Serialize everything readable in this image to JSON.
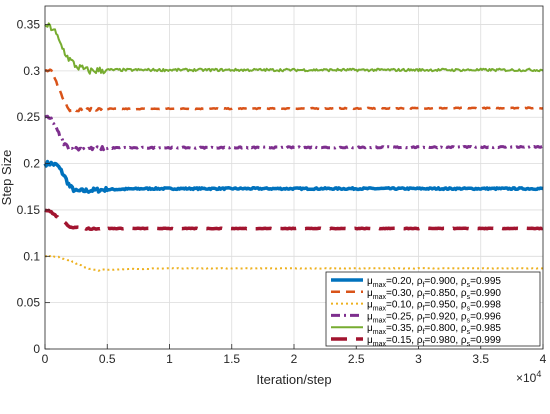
{
  "chart_data": {
    "type": "line",
    "xlabel": "Iteration/step",
    "ylabel": "Step Size",
    "x_multiplier_label": "×10",
    "x_multiplier_exp": "4",
    "xlim": [
      0,
      40000
    ],
    "ylim": [
      0,
      0.37
    ],
    "xticks": [
      0,
      5000,
      10000,
      15000,
      20000,
      25000,
      30000,
      35000,
      40000
    ],
    "xtick_labels": [
      "0",
      "0.5",
      "1",
      "1.5",
      "2",
      "2.5",
      "3",
      "3.5",
      "4"
    ],
    "yticks": [
      0,
      0.05,
      0.1,
      0.15,
      0.2,
      0.25,
      0.3,
      0.35
    ],
    "ytick_labels": [
      "0",
      "0.05",
      "0.1",
      "0.15",
      "0.2",
      "0.25",
      "0.3",
      "0.35"
    ],
    "grid": true,
    "legend_position": "bottom-right",
    "series": [
      {
        "color": "#0072BD",
        "style": "solid",
        "width": 3.5,
        "noise": 0.0025,
        "legend": {
          "mu": "0.20",
          "rf": "0.900",
          "rs": "0.995"
        },
        "points": [
          [
            0,
            0.2
          ],
          [
            500,
            0.2
          ],
          [
            1000,
            0.198
          ],
          [
            1500,
            0.188
          ],
          [
            2000,
            0.175
          ],
          [
            2500,
            0.17
          ],
          [
            3500,
            0.171
          ],
          [
            5000,
            0.172
          ],
          [
            8000,
            0.173
          ],
          [
            40000,
            0.173
          ]
        ]
      },
      {
        "color": "#D95319",
        "style": "dash",
        "width": 2.5,
        "noise": 0.0015,
        "legend": {
          "mu": "0.30",
          "rf": "0.850",
          "rs": "0.990"
        },
        "points": [
          [
            0,
            0.3
          ],
          [
            500,
            0.3
          ],
          [
            1000,
            0.285
          ],
          [
            1500,
            0.268
          ],
          [
            2000,
            0.258
          ],
          [
            2500,
            0.258
          ],
          [
            5000,
            0.259
          ],
          [
            40000,
            0.26
          ]
        ]
      },
      {
        "color": "#EDB120",
        "style": "dot",
        "width": 2,
        "noise": 0.0008,
        "legend": {
          "mu": "0.10",
          "rf": "0.950",
          "rs": "0.998"
        },
        "points": [
          [
            0,
            0.1
          ],
          [
            1000,
            0.099
          ],
          [
            2000,
            0.096
          ],
          [
            3000,
            0.089
          ],
          [
            4000,
            0.085
          ],
          [
            6000,
            0.086
          ],
          [
            10000,
            0.087
          ],
          [
            40000,
            0.087
          ]
        ]
      },
      {
        "color": "#7E2F8E",
        "style": "dashdot",
        "width": 3,
        "noise": 0.002,
        "legend": {
          "mu": "0.25",
          "rf": "0.920",
          "rs": "0.996"
        },
        "points": [
          [
            0,
            0.25
          ],
          [
            500,
            0.248
          ],
          [
            1000,
            0.235
          ],
          [
            1500,
            0.222
          ],
          [
            2000,
            0.216
          ],
          [
            3000,
            0.216
          ],
          [
            6000,
            0.217
          ],
          [
            40000,
            0.218
          ]
        ]
      },
      {
        "color": "#77AC30",
        "style": "solid",
        "width": 2,
        "noise": 0.004,
        "legend": {
          "mu": "0.35",
          "rf": "0.800",
          "rs": "0.985"
        },
        "points": [
          [
            0,
            0.35
          ],
          [
            700,
            0.345
          ],
          [
            1200,
            0.33
          ],
          [
            1800,
            0.315
          ],
          [
            2500,
            0.305
          ],
          [
            3500,
            0.3
          ],
          [
            5000,
            0.301
          ],
          [
            40000,
            0.301
          ]
        ]
      },
      {
        "color": "#A2142F",
        "style": "dash-long",
        "width": 3.5,
        "noise": 0.0008,
        "legend": {
          "mu": "0.15",
          "rf": "0.980",
          "rs": "0.999"
        },
        "points": [
          [
            0,
            0.15
          ],
          [
            500,
            0.148
          ],
          [
            1000,
            0.142
          ],
          [
            1500,
            0.137
          ],
          [
            2000,
            0.132
          ],
          [
            3000,
            0.13
          ],
          [
            5000,
            0.13
          ],
          [
            40000,
            0.13
          ]
        ]
      }
    ]
  }
}
